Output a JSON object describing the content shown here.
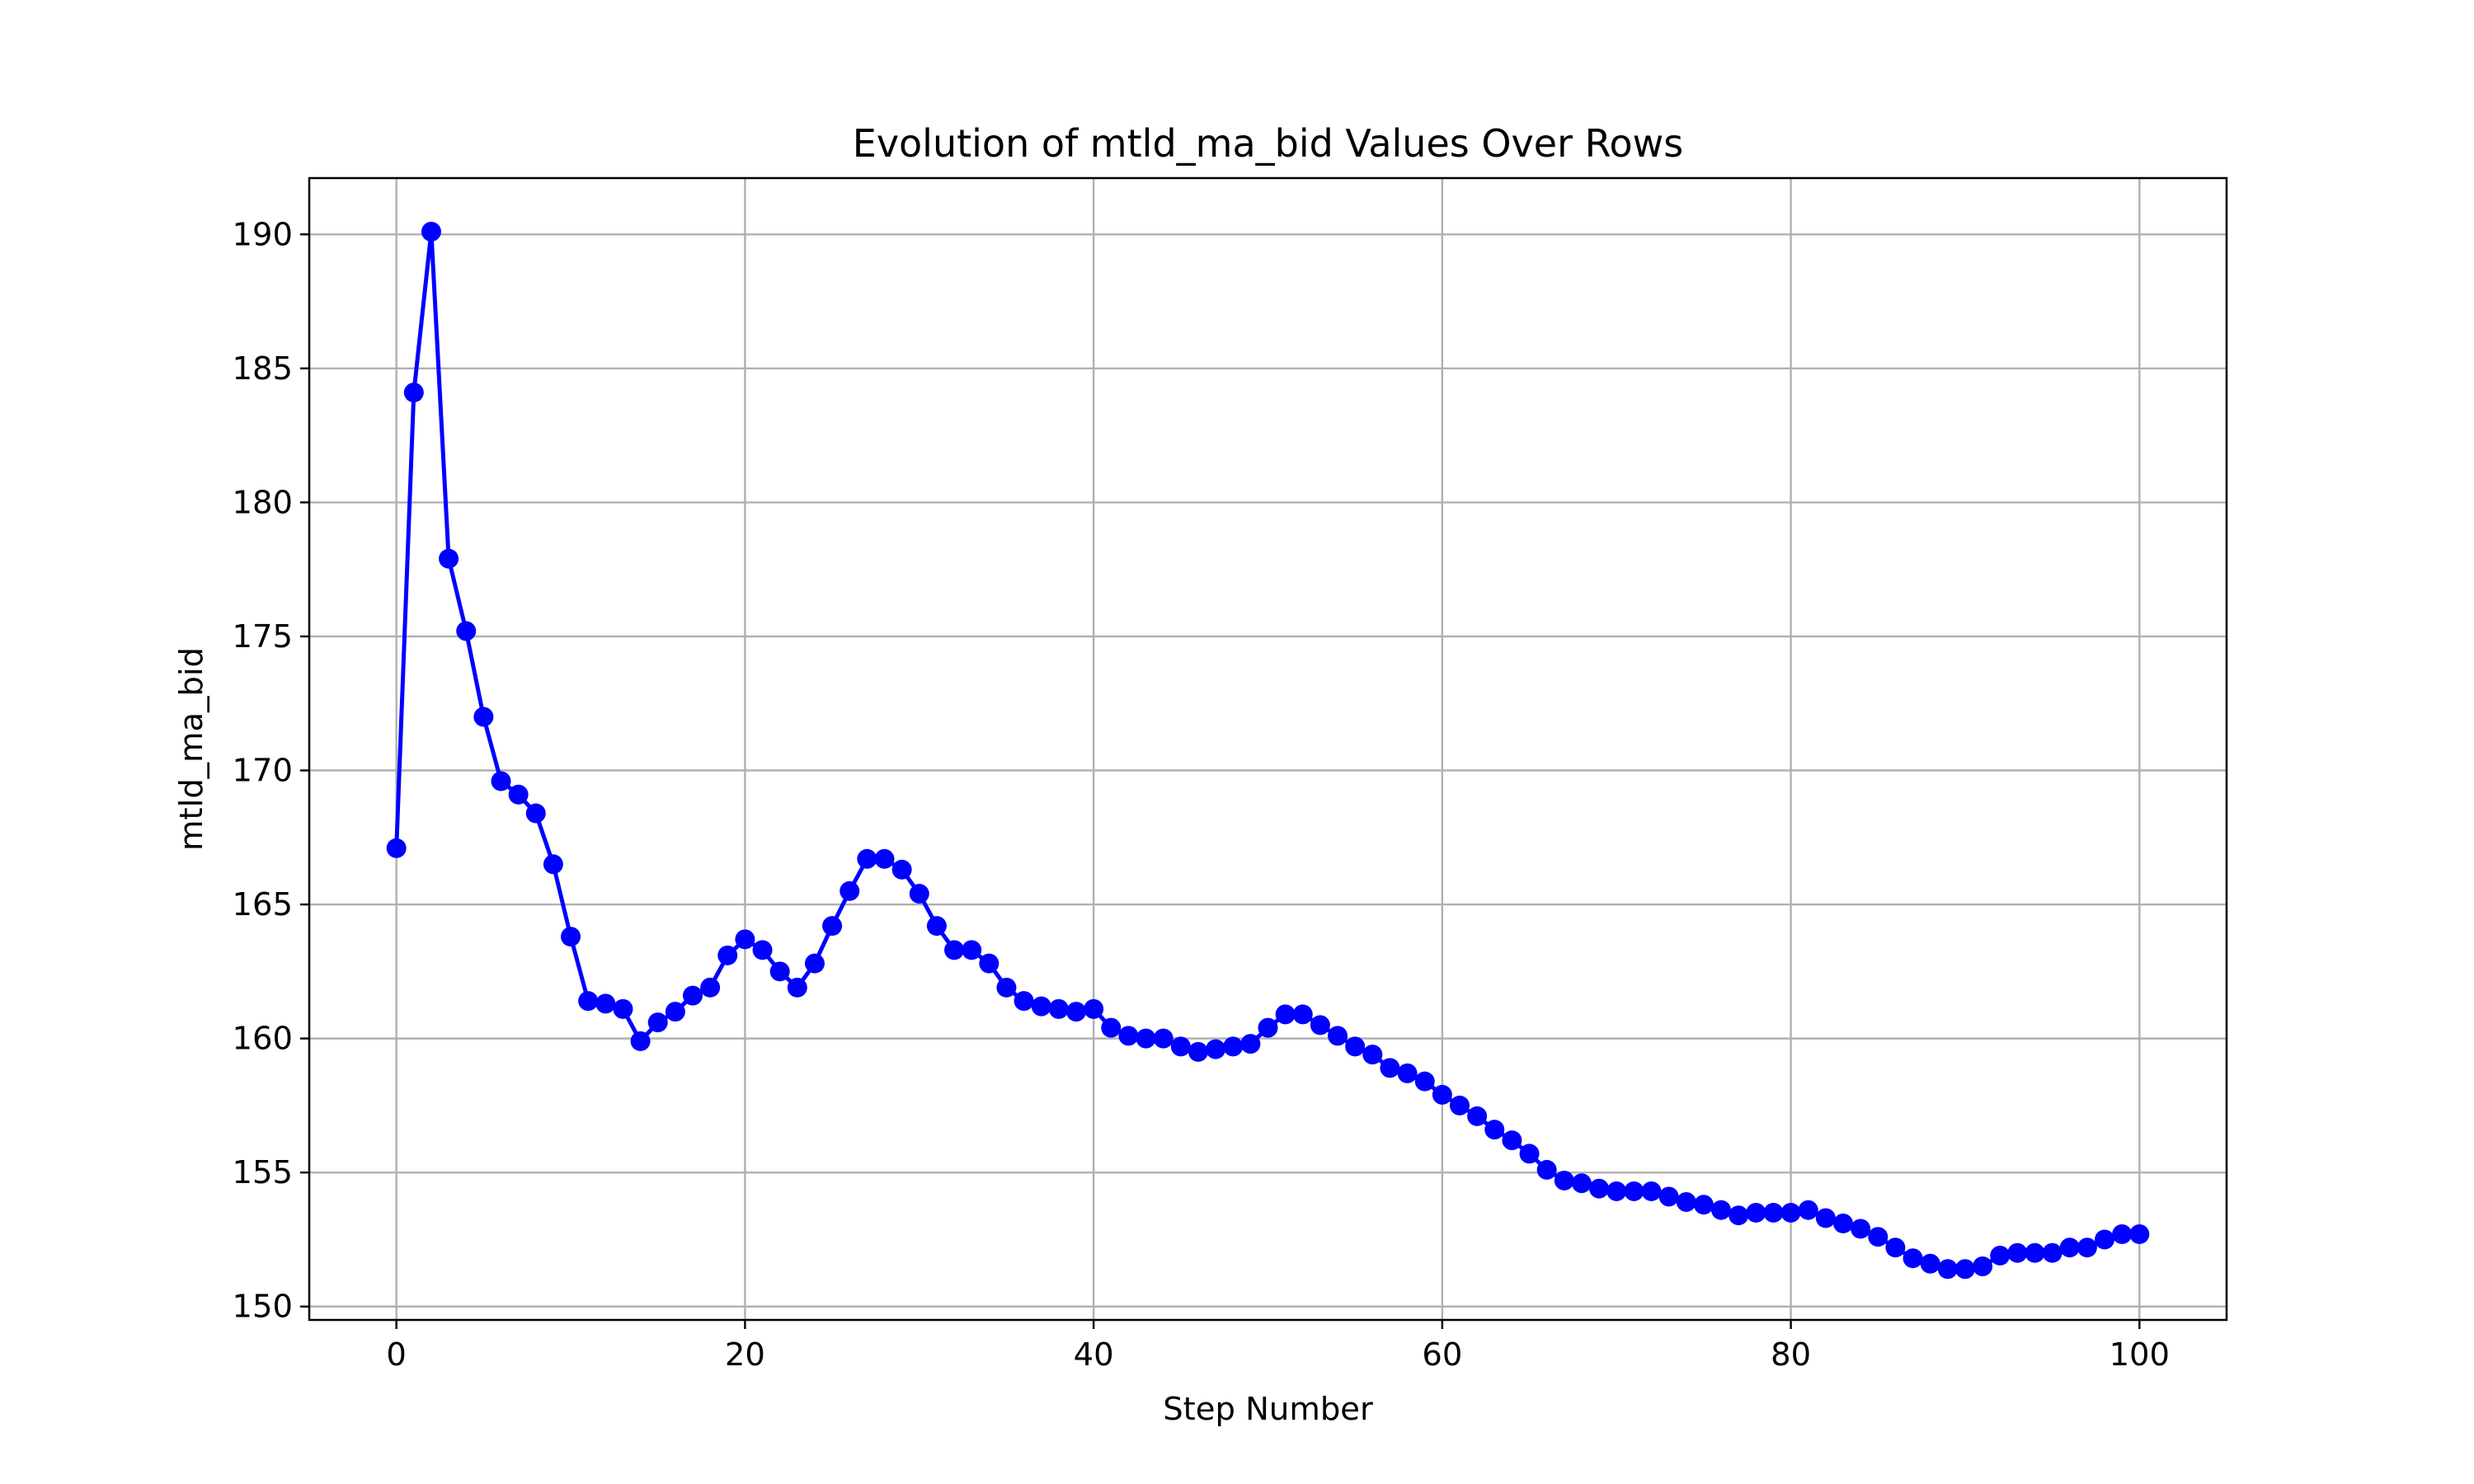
{
  "chart_data": {
    "type": "line",
    "title": "Evolution of mtld_ma_bid Values Over Rows",
    "xlabel": "Step Number",
    "ylabel": "mtld_ma_bid",
    "xlim": [
      -5,
      105
    ],
    "ylim": [
      149.5,
      192.1
    ],
    "xticks": [
      0,
      20,
      40,
      60,
      80,
      100
    ],
    "xtick_labels": [
      "0",
      "20",
      "40",
      "60",
      "80",
      "100"
    ],
    "yticks": [
      150,
      155,
      160,
      165,
      170,
      175,
      180,
      185,
      190
    ],
    "ytick_labels": [
      "150",
      "155",
      "160",
      "165",
      "170",
      "175",
      "180",
      "185",
      "190"
    ],
    "grid": true,
    "legend": "none",
    "colors": {
      "line": "#0000ff",
      "marker": "#0000ff",
      "grid": "#b0b0b0",
      "axes": "#000000"
    },
    "series": [
      {
        "marker": "circle",
        "x": [
          0,
          1,
          2,
          3,
          4,
          5,
          6,
          7,
          8,
          9,
          10,
          11,
          12,
          13,
          14,
          15,
          16,
          17,
          18,
          19,
          20,
          21,
          22,
          23,
          24,
          25,
          26,
          27,
          28,
          29,
          30,
          31,
          32,
          33,
          34,
          35,
          36,
          37,
          38,
          39,
          40,
          41,
          42,
          43,
          44,
          45,
          46,
          47,
          48,
          49,
          50,
          51,
          52,
          53,
          54,
          55,
          56,
          57,
          58,
          59,
          60,
          61,
          62,
          63,
          64,
          65,
          66,
          67,
          68,
          69,
          70,
          71,
          72,
          73,
          74,
          75,
          76,
          77,
          78,
          79,
          80,
          81,
          82,
          83,
          84,
          85,
          86,
          87,
          88,
          89,
          90,
          91,
          92,
          93,
          94,
          95,
          96,
          97,
          98,
          99,
          100
        ],
        "y": [
          167.1,
          184.1,
          190.1,
          177.9,
          175.2,
          172.0,
          169.6,
          169.1,
          168.4,
          166.5,
          163.8,
          161.4,
          161.3,
          161.1,
          159.9,
          160.6,
          161.0,
          161.6,
          161.9,
          163.1,
          163.7,
          163.3,
          162.5,
          161.9,
          162.8,
          164.2,
          165.5,
          166.7,
          166.7,
          166.3,
          165.4,
          164.2,
          163.3,
          163.3,
          162.8,
          161.9,
          161.4,
          161.2,
          161.1,
          161.0,
          161.1,
          160.4,
          160.1,
          160.0,
          160.0,
          159.7,
          159.5,
          159.6,
          159.7,
          159.8,
          160.4,
          160.9,
          160.9,
          160.5,
          160.1,
          159.7,
          159.4,
          158.9,
          158.7,
          158.4,
          157.9,
          157.5,
          157.1,
          156.6,
          156.2,
          155.7,
          155.1,
          154.7,
          154.6,
          154.4,
          154.3,
          154.3,
          154.3,
          154.1,
          153.9,
          153.8,
          153.6,
          153.4,
          153.5,
          153.5,
          153.5,
          153.6,
          153.3,
          153.1,
          152.9,
          152.6,
          152.2,
          151.8,
          151.6,
          151.4,
          151.4,
          151.5,
          151.9,
          152.0,
          152.0,
          152.0,
          152.2,
          152.2,
          152.5,
          152.7,
          152.7
        ]
      }
    ]
  }
}
